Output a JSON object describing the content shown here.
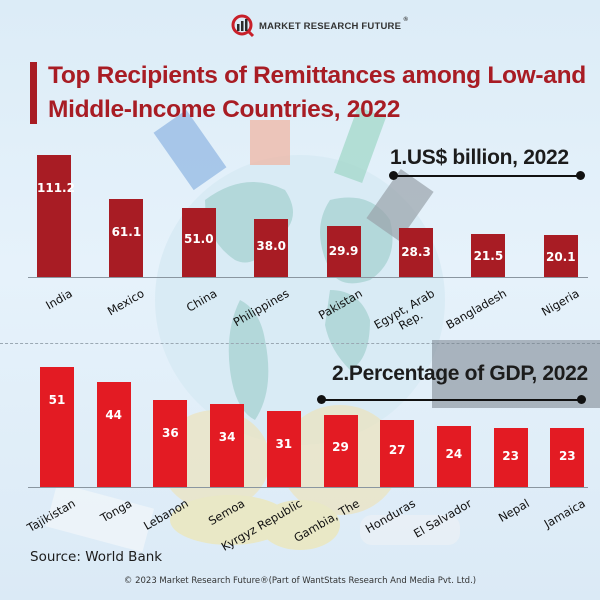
{
  "brand": {
    "name": "MARKET RESEARCH FUTURE",
    "registered": "®"
  },
  "title": "Top Recipients of Remittances among Low-and Middle-Income Countries, 2022",
  "colors": {
    "title": "#a81c24",
    "bars_usd": "#a81c24",
    "bars_gdp": "#e31b23",
    "text_dark": "#1c1c1c"
  },
  "chart_data": [
    {
      "type": "bar",
      "title": "1.US$ billion, 2022",
      "xlabel": "",
      "ylabel": "US$ billion",
      "categories": [
        "India",
        "Mexico",
        "China",
        "Philippines",
        "Pakistan",
        "Egypt, Arab Rep.",
        "Bangladesh",
        "Nigeria"
      ],
      "values": [
        111.2,
        61.1,
        51.0,
        38.0,
        29.9,
        28.3,
        21.5,
        20.1
      ],
      "value_labels": [
        "111.2",
        "61.1",
        "51.0",
        "38.0",
        "29.9",
        "28.3",
        "21.5",
        "20.1"
      ],
      "data_labels": "inside-bar",
      "grid": false,
      "legend": "none"
    },
    {
      "type": "bar",
      "title": "2.Percentage of GDP, 2022",
      "xlabel": "",
      "ylabel": "% of GDP",
      "categories": [
        "Tajikistan",
        "Tonga",
        "Lebanon",
        "Semoa",
        "Kyrgyz Republic",
        "Gambia, The",
        "Honduras",
        "El Salvador",
        "Nepal",
        "Jamaica"
      ],
      "values": [
        51,
        44,
        36,
        34,
        31,
        29,
        27,
        24,
        23,
        23
      ],
      "value_labels": [
        "51",
        "44",
        "36",
        "34",
        "31",
        "29",
        "27",
        "24",
        "23",
        "23"
      ],
      "data_labels": "inside-bar",
      "grid": false,
      "legend": "none"
    }
  ],
  "source": "Source: World Bank",
  "footer": "© 2023 Market Research Future®(Part of WantStats Research And Media Pvt. Ltd.)"
}
